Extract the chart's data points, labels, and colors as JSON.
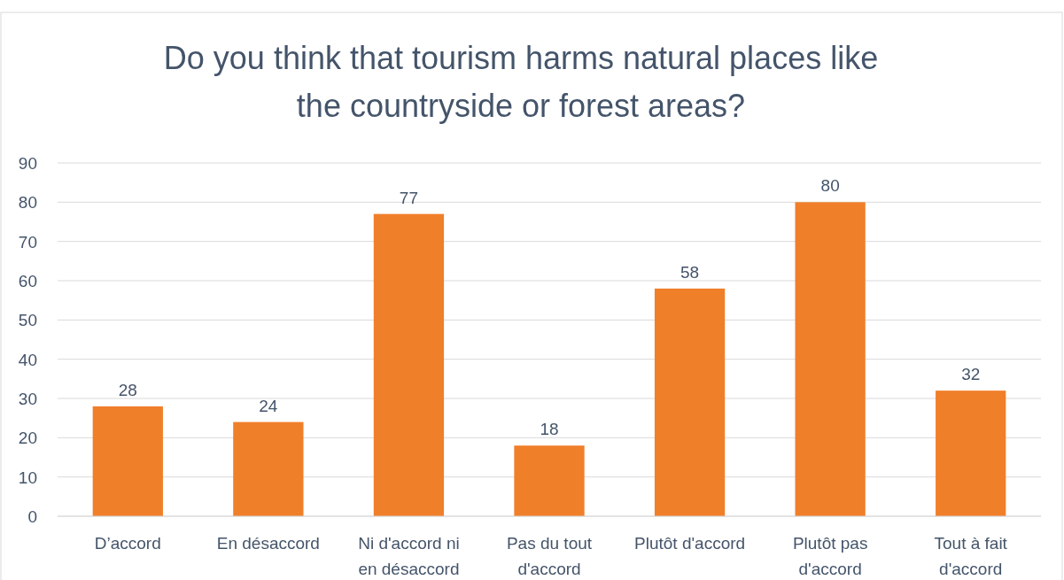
{
  "chart_data": {
    "type": "bar",
    "title": "Do you think that tourism harms natural places like the countryside or forest areas?",
    "categories": [
      "D’accord",
      "En désaccord",
      "Ni d'accord ni en désaccord",
      "Pas du tout d'accord",
      "Plutôt d'accord",
      "Plutôt pas d'accord",
      "Tout à fait d'accord"
    ],
    "values": [
      28,
      24,
      77,
      18,
      58,
      80,
      32
    ],
    "color": "#f07f2a",
    "ylim": [
      0,
      90
    ],
    "yticks": [
      0,
      10,
      20,
      30,
      40,
      50,
      60,
      70,
      80,
      90
    ],
    "grid": "y",
    "data_labels": true
  }
}
